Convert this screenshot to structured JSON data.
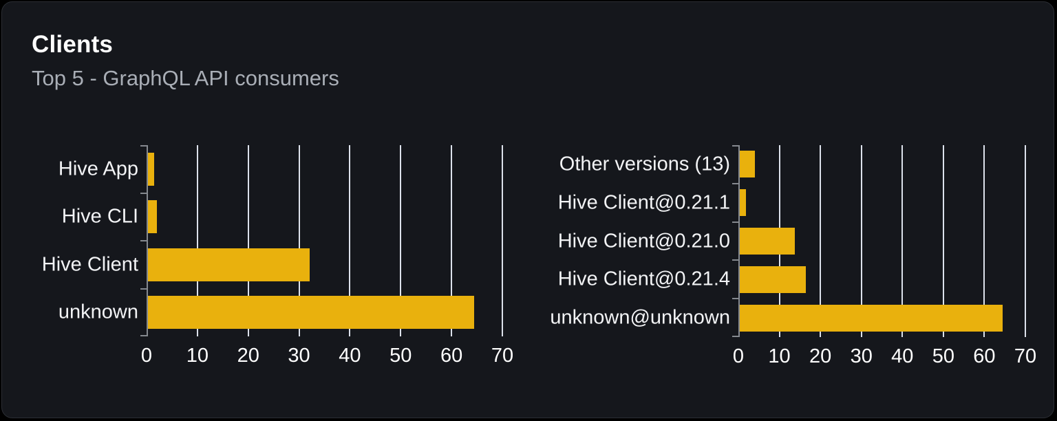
{
  "card": {
    "title": "Clients",
    "subtitle": "Top 5 - GraphQL API consumers"
  },
  "colors": {
    "page_background": "#000000",
    "card_background": "#15171c",
    "card_border": "#2b2e34",
    "title_text": "#ffffff",
    "subtitle_text": "#a9aeb6",
    "category_label_text": "#f2f3f5",
    "tick_label_text": "#ffffff",
    "bar": "#e9b10d",
    "gridline": "#dde2ec",
    "axis": "#85898f"
  },
  "chart_data": [
    {
      "type": "bar",
      "orientation": "horizontal",
      "title": "Top 5 clients",
      "categories": [
        "Hive App",
        "Hive CLI",
        "Hive Client",
        "unknown"
      ],
      "values": [
        1.5,
        2.0,
        32.1,
        64.4
      ],
      "xlabel": "",
      "ylabel": "",
      "xlim": [
        0,
        70
      ],
      "xticks": [
        0,
        10,
        20,
        30,
        40,
        50,
        60,
        70
      ],
      "grid": true,
      "legend": false,
      "bar_color": "#e9b10d"
    },
    {
      "type": "bar",
      "orientation": "horizontal",
      "title": "Top 5 client versions",
      "categories": [
        "Other versions (13)",
        "Hive Client@0.21.1",
        "Hive Client@0.21.0",
        "Hive Client@0.21.4",
        "unknown@unknown"
      ],
      "values": [
        4.0,
        1.8,
        13.8,
        16.5,
        64.4
      ],
      "xlabel": "",
      "ylabel": "",
      "xlim": [
        0,
        70
      ],
      "xticks": [
        0,
        10,
        20,
        30,
        40,
        50,
        60,
        70
      ],
      "grid": true,
      "legend": false,
      "bar_color": "#e9b10d"
    }
  ]
}
